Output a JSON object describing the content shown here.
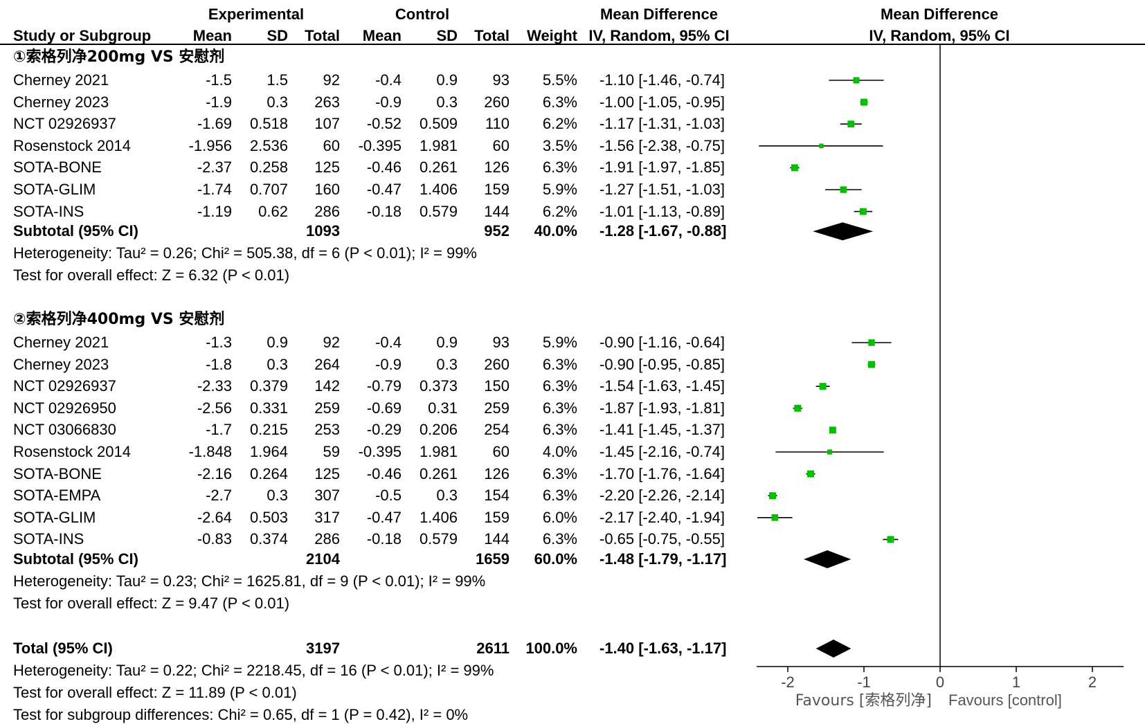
{
  "header": {
    "group1": "Experimental",
    "group2": "Control",
    "effect_top": "Mean Difference",
    "effect_sub": "IV, Random, 95% CI",
    "plot_top": "Mean Difference",
    "plot_sub": "IV, Random, 95% CI",
    "columns": [
      "Study or Subgroup",
      "Mean",
      "SD",
      "Total",
      "Mean",
      "SD",
      "Total",
      "Weight"
    ]
  },
  "subgroups": [
    {
      "title": "①索格列净200mg VS 安慰剂",
      "studies": [
        {
          "name": "Cherney 2021",
          "e_mean": "-1.5",
          "e_sd": "1.5",
          "e_total": "92",
          "c_mean": "-0.4",
          "c_sd": "0.9",
          "c_total": "93",
          "weight": "5.5%",
          "ci_text": "-1.10 [-1.46, -0.74]",
          "md": -1.1,
          "lo": -1.46,
          "hi": -0.74
        },
        {
          "name": "Cherney 2023",
          "e_mean": "-1.9",
          "e_sd": "0.3",
          "e_total": "263",
          "c_mean": "-0.9",
          "c_sd": "0.3",
          "c_total": "260",
          "weight": "6.3%",
          "ci_text": "-1.00 [-1.05, -0.95]",
          "md": -1.0,
          "lo": -1.05,
          "hi": -0.95
        },
        {
          "name": "NCT 02926937",
          "e_mean": "-1.69",
          "e_sd": "0.518",
          "e_total": "107",
          "c_mean": "-0.52",
          "c_sd": "0.509",
          "c_total": "110",
          "weight": "6.2%",
          "ci_text": "-1.17 [-1.31, -1.03]",
          "md": -1.17,
          "lo": -1.31,
          "hi": -1.03
        },
        {
          "name": "Rosenstock 2014",
          "e_mean": "-1.956",
          "e_sd": "2.536",
          "e_total": "60",
          "c_mean": "-0.395",
          "c_sd": "1.981",
          "c_total": "60",
          "weight": "3.5%",
          "ci_text": "-1.56 [-2.38, -0.75]",
          "md": -1.56,
          "lo": -2.38,
          "hi": -0.75
        },
        {
          "name": "SOTA-BONE",
          "e_mean": "-2.37",
          "e_sd": "0.258",
          "e_total": "125",
          "c_mean": "-0.46",
          "c_sd": "0.261",
          "c_total": "126",
          "weight": "6.3%",
          "ci_text": "-1.91 [-1.97, -1.85]",
          "md": -1.91,
          "lo": -1.97,
          "hi": -1.85
        },
        {
          "name": "SOTA-GLIM",
          "e_mean": "-1.74",
          "e_sd": "0.707",
          "e_total": "160",
          "c_mean": "-0.47",
          "c_sd": "1.406",
          "c_total": "159",
          "weight": "5.9%",
          "ci_text": "-1.27 [-1.51, -1.03]",
          "md": -1.27,
          "lo": -1.51,
          "hi": -1.03
        },
        {
          "name": "SOTA-INS",
          "e_mean": "-1.19",
          "e_sd": "0.62",
          "e_total": "286",
          "c_mean": "-0.18",
          "c_sd": "0.579",
          "c_total": "144",
          "weight": "6.2%",
          "ci_text": "-1.01 [-1.13, -0.89]",
          "md": -1.01,
          "lo": -1.13,
          "hi": -0.89
        }
      ],
      "subtotal": {
        "label": "Subtotal (95% CI)",
        "e_total": "1093",
        "c_total": "952",
        "weight": "40.0%",
        "ci_text": "-1.28 [-1.67, -0.88]",
        "md": -1.28,
        "lo": -1.67,
        "hi": -0.88
      },
      "heterogeneity": "Heterogeneity: Tau² = 0.26; Chi² = 505.38, df = 6 (P < 0.01); I² = 99%",
      "overall": "Test for overall effect: Z = 6.32 (P < 0.01)"
    },
    {
      "title": "②索格列净400mg VS 安慰剂",
      "studies": [
        {
          "name": "Cherney 2021",
          "e_mean": "-1.3",
          "e_sd": "0.9",
          "e_total": "92",
          "c_mean": "-0.4",
          "c_sd": "0.9",
          "c_total": "93",
          "weight": "5.9%",
          "ci_text": "-0.90 [-1.16, -0.64]",
          "md": -0.9,
          "lo": -1.16,
          "hi": -0.64
        },
        {
          "name": "Cherney 2023",
          "e_mean": "-1.8",
          "e_sd": "0.3",
          "e_total": "264",
          "c_mean": "-0.9",
          "c_sd": "0.3",
          "c_total": "260",
          "weight": "6.3%",
          "ci_text": "-0.90 [-0.95, -0.85]",
          "md": -0.9,
          "lo": -0.95,
          "hi": -0.85
        },
        {
          "name": "NCT 02926937",
          "e_mean": "-2.33",
          "e_sd": "0.379",
          "e_total": "142",
          "c_mean": "-0.79",
          "c_sd": "0.373",
          "c_total": "150",
          "weight": "6.3%",
          "ci_text": "-1.54 [-1.63, -1.45]",
          "md": -1.54,
          "lo": -1.63,
          "hi": -1.45
        },
        {
          "name": "NCT 02926950",
          "e_mean": "-2.56",
          "e_sd": "0.331",
          "e_total": "259",
          "c_mean": "-0.69",
          "c_sd": "0.31",
          "c_total": "259",
          "weight": "6.3%",
          "ci_text": "-1.87 [-1.93, -1.81]",
          "md": -1.87,
          "lo": -1.93,
          "hi": -1.81
        },
        {
          "name": "NCT 03066830",
          "e_mean": "-1.7",
          "e_sd": "0.215",
          "e_total": "253",
          "c_mean": "-0.29",
          "c_sd": "0.206",
          "c_total": "254",
          "weight": "6.3%",
          "ci_text": "-1.41 [-1.45, -1.37]",
          "md": -1.41,
          "lo": -1.45,
          "hi": -1.37
        },
        {
          "name": "Rosenstock 2014",
          "e_mean": "-1.848",
          "e_sd": "1.964",
          "e_total": "59",
          "c_mean": "-0.395",
          "c_sd": "1.981",
          "c_total": "60",
          "weight": "4.0%",
          "ci_text": "-1.45 [-2.16, -0.74]",
          "md": -1.45,
          "lo": -2.16,
          "hi": -0.74
        },
        {
          "name": "SOTA-BONE",
          "e_mean": "-2.16",
          "e_sd": "0.264",
          "e_total": "125",
          "c_mean": "-0.46",
          "c_sd": "0.261",
          "c_total": "126",
          "weight": "6.3%",
          "ci_text": "-1.70 [-1.76, -1.64]",
          "md": -1.7,
          "lo": -1.76,
          "hi": -1.64
        },
        {
          "name": "SOTA-EMPA",
          "e_mean": "-2.7",
          "e_sd": "0.3",
          "e_total": "307",
          "c_mean": "-0.5",
          "c_sd": "0.3",
          "c_total": "154",
          "weight": "6.3%",
          "ci_text": "-2.20 [-2.26, -2.14]",
          "md": -2.2,
          "lo": -2.26,
          "hi": -2.14
        },
        {
          "name": "SOTA-GLIM",
          "e_mean": "-2.64",
          "e_sd": "0.503",
          "e_total": "317",
          "c_mean": "-0.47",
          "c_sd": "1.406",
          "c_total": "159",
          "weight": "6.0%",
          "ci_text": "-2.17 [-2.40, -1.94]",
          "md": -2.17,
          "lo": -2.4,
          "hi": -1.94
        },
        {
          "name": "SOTA-INS",
          "e_mean": "-0.83",
          "e_sd": "0.374",
          "e_total": "286",
          "c_mean": "-0.18",
          "c_sd": "0.579",
          "c_total": "144",
          "weight": "6.3%",
          "ci_text": "-0.65 [-0.75, -0.55]",
          "md": -0.65,
          "lo": -0.75,
          "hi": -0.55
        }
      ],
      "subtotal": {
        "label": "Subtotal (95% CI)",
        "e_total": "2104",
        "c_total": "1659",
        "weight": "60.0%",
        "ci_text": "-1.48 [-1.79, -1.17]",
        "md": -1.48,
        "lo": -1.79,
        "hi": -1.17
      },
      "heterogeneity": "Heterogeneity: Tau² = 0.23; Chi² = 1625.81, df = 9 (P < 0.01); I² = 99%",
      "overall": "Test for overall effect: Z = 9.47 (P < 0.01)"
    }
  ],
  "total": {
    "label": "Total (95% CI)",
    "e_total": "3197",
    "c_total": "2611",
    "weight": "100.0%",
    "ci_text": "-1.40 [-1.63, -1.17]",
    "md": -1.4,
    "lo": -1.63,
    "hi": -1.17,
    "heterogeneity": "Heterogeneity: Tau² = 0.22; Chi² = 2218.45, df = 16 (P < 0.01); I² = 99%",
    "overall": "Test for overall effect: Z = 11.89 (P < 0.01)",
    "subgroup_diff": "Test for subgroup differences: Chi² = 0.65, df = 1 (P = 0.42), I² = 0%"
  },
  "chart_data": {
    "type": "forest",
    "xlim": [
      -2.5,
      2.5
    ],
    "ticks": [
      -2,
      -1,
      0,
      1,
      2
    ],
    "tick_labels": [
      "-2",
      "-1",
      "0",
      "1",
      "2"
    ],
    "favours_left": "Favours [索格列净]",
    "favours_right": "Favours [control]",
    "point_color": "#00c000"
  }
}
